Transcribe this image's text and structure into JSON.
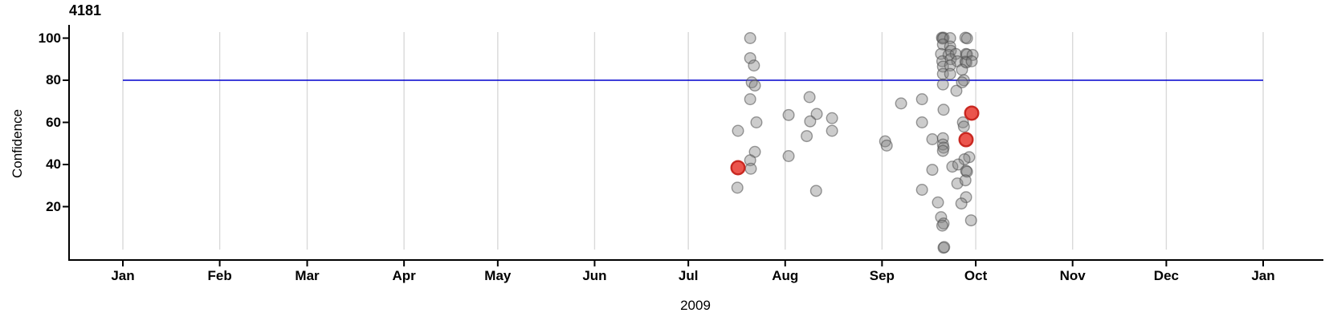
{
  "chart_data": {
    "type": "scatter",
    "title": "4181",
    "xlabel": "2009",
    "ylabel": "Confidence",
    "x_axis": {
      "unit": "month",
      "tick_labels": [
        "Jan",
        "Feb",
        "Mar",
        "Apr",
        "May",
        "Jun",
        "Jul",
        "Aug",
        "Sep",
        "Oct",
        "Nov",
        "Dec",
        "Jan"
      ],
      "tick_day_of_year": [
        0,
        31,
        59,
        90,
        120,
        151,
        181,
        212,
        243,
        273,
        304,
        334,
        365
      ],
      "range_days": [
        0,
        365
      ],
      "grid": true,
      "gridline_color": "#d9d9d9"
    },
    "y_axis": {
      "tick_values": [
        20,
        40,
        60,
        80,
        100
      ],
      "range": [
        0,
        105
      ]
    },
    "reference_line": {
      "y": 80,
      "color": "#0000CD"
    },
    "series": [
      {
        "name": "observations",
        "point_color": "#7f7f7f",
        "point_stroke": "#4d4d4d",
        "fill_opacity": 0.4,
        "stroke_opacity": 0.55,
        "radius": 6.8,
        "points": [
          [
            200.8,
            100
          ],
          [
            200.8,
            90.5
          ],
          [
            202.0,
            87
          ],
          [
            201.3,
            79
          ],
          [
            202.3,
            77.5
          ],
          [
            200.8,
            71
          ],
          [
            202.8,
            60
          ],
          [
            196.9,
            56
          ],
          [
            202.3,
            46
          ],
          [
            200.8,
            42
          ],
          [
            201.0,
            38
          ],
          [
            196.7,
            29
          ],
          [
            213.1,
            63.5
          ],
          [
            219.8,
            72
          ],
          [
            222.1,
            64
          ],
          [
            220.0,
            60.5
          ],
          [
            218.9,
            53.5
          ],
          [
            227.0,
            62
          ],
          [
            227.0,
            56
          ],
          [
            213.1,
            44
          ],
          [
            221.9,
            27.5
          ],
          [
            244.0,
            51
          ],
          [
            244.5,
            49
          ],
          [
            249.1,
            69
          ],
          [
            255.8,
            71
          ],
          [
            255.8,
            60
          ],
          [
            255.8,
            28
          ],
          [
            262.2,
            100.2
          ],
          [
            262.7,
            100.2
          ],
          [
            262.4,
            99.8
          ],
          [
            264.8,
            100
          ],
          [
            269.7,
            100.2
          ],
          [
            270.2,
            99.9
          ],
          [
            262.5,
            97
          ],
          [
            264.8,
            96
          ],
          [
            265.0,
            94
          ],
          [
            261.9,
            92.5
          ],
          [
            264.3,
            92
          ],
          [
            266.6,
            92.5
          ],
          [
            269.9,
            92.5
          ],
          [
            270.2,
            92.2
          ],
          [
            272.0,
            92
          ],
          [
            262.3,
            89
          ],
          [
            265.0,
            90
          ],
          [
            267.1,
            89
          ],
          [
            269.7,
            88.8
          ],
          [
            270.0,
            88.4
          ],
          [
            271.7,
            89
          ],
          [
            262.5,
            86.5
          ],
          [
            264.8,
            87
          ],
          [
            268.6,
            85
          ],
          [
            262.5,
            83
          ],
          [
            264.8,
            83
          ],
          [
            269.2,
            80
          ],
          [
            268.6,
            79
          ],
          [
            262.5,
            78
          ],
          [
            266.8,
            75
          ],
          [
            262.7,
            66
          ],
          [
            268.9,
            60
          ],
          [
            269.2,
            58
          ],
          [
            259.1,
            52
          ],
          [
            262.5,
            52.5
          ],
          [
            262.5,
            49.5
          ],
          [
            262.7,
            48
          ],
          [
            262.5,
            46.5
          ],
          [
            270.9,
            43.5
          ],
          [
            269.4,
            42.5
          ],
          [
            265.5,
            39
          ],
          [
            267.4,
            40
          ],
          [
            269.9,
            37
          ],
          [
            270.2,
            36.6
          ],
          [
            259.1,
            37.5
          ],
          [
            267.1,
            31
          ],
          [
            269.7,
            32.5
          ],
          [
            269.9,
            24.5
          ],
          [
            260.9,
            22
          ],
          [
            268.4,
            21.5
          ],
          [
            261.9,
            15
          ],
          [
            262.7,
            12
          ],
          [
            262.3,
            11
          ],
          [
            271.5,
            13.5
          ],
          [
            262.7,
            0.5
          ],
          [
            262.9,
            0.8
          ]
        ]
      },
      {
        "name": "highlighted-observations",
        "point_color": "#e83e34",
        "point_stroke": "#c6221a",
        "fill_opacity": 0.88,
        "stroke_opacity": 0.95,
        "radius": 8.3,
        "points": [
          [
            196.9,
            38.5
          ],
          [
            271.7,
            64.4
          ],
          [
            269.9,
            51.8
          ]
        ]
      }
    ]
  }
}
